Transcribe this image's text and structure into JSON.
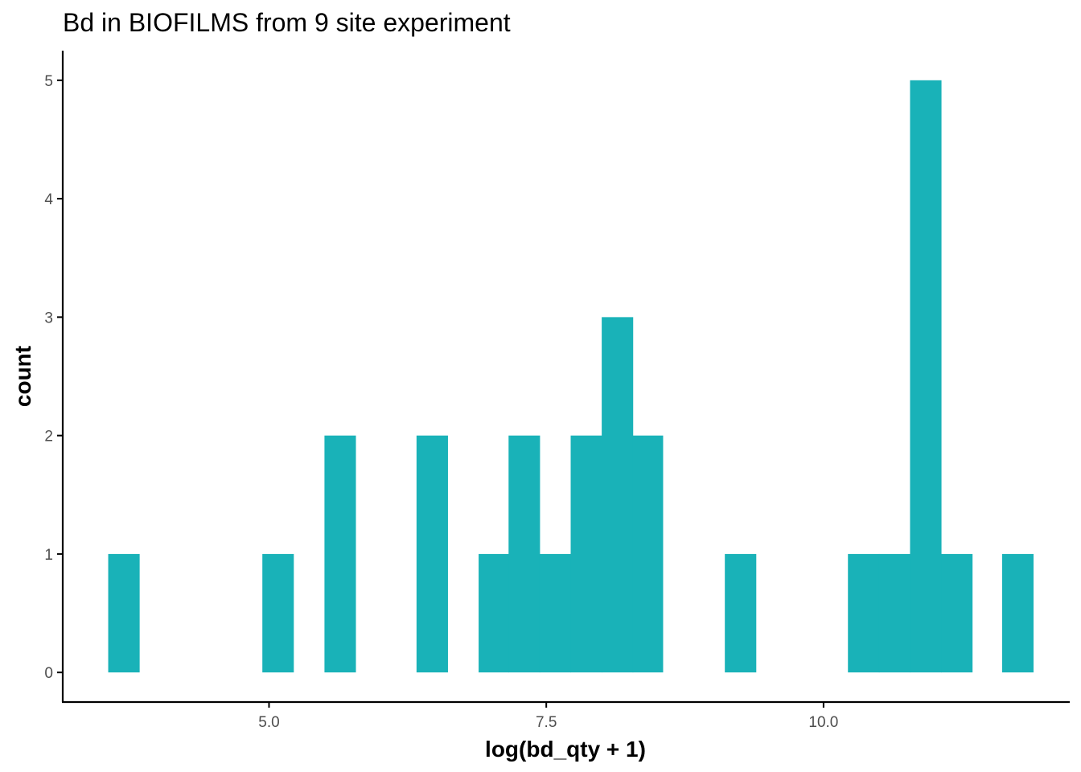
{
  "chart_data": {
    "type": "bar",
    "title": "Bd in BIOFILMS from 9 site experiment",
    "xlabel": "log(bd_qty + 1)",
    "ylabel": "count",
    "bar_color": "#19B2B8",
    "axis_color": "#000000",
    "tick_label_color": "#4d4d4d",
    "grid": false,
    "xlim": [
      3.14,
      12.22
    ],
    "ylim": [
      -0.25,
      5.25
    ],
    "xticks": [
      5.0,
      7.5,
      10.0
    ],
    "xtick_labels": [
      "5.0",
      "7.5",
      "10.0"
    ],
    "yticks": [
      0,
      1,
      2,
      3,
      4,
      5
    ],
    "ytick_labels": [
      "0",
      "1",
      "2",
      "3",
      "4",
      "5"
    ],
    "bins": [
      {
        "x0": 3.55,
        "x1": 3.83,
        "count": 1
      },
      {
        "x0": 4.94,
        "x1": 5.22,
        "count": 1
      },
      {
        "x0": 5.5,
        "x1": 5.78,
        "count": 2
      },
      {
        "x0": 6.33,
        "x1": 6.61,
        "count": 2
      },
      {
        "x0": 6.89,
        "x1": 7.16,
        "count": 1
      },
      {
        "x0": 7.16,
        "x1": 7.44,
        "count": 2
      },
      {
        "x0": 7.44,
        "x1": 7.72,
        "count": 1
      },
      {
        "x0": 7.72,
        "x1": 8.0,
        "count": 2
      },
      {
        "x0": 8.0,
        "x1": 8.28,
        "count": 3
      },
      {
        "x0": 8.28,
        "x1": 8.55,
        "count": 2
      },
      {
        "x0": 9.11,
        "x1": 9.39,
        "count": 1
      },
      {
        "x0": 10.22,
        "x1": 10.5,
        "count": 1
      },
      {
        "x0": 10.5,
        "x1": 10.78,
        "count": 1
      },
      {
        "x0": 10.78,
        "x1": 11.06,
        "count": 5
      },
      {
        "x0": 11.06,
        "x1": 11.34,
        "count": 1
      },
      {
        "x0": 11.61,
        "x1": 11.89,
        "count": 1
      }
    ]
  }
}
